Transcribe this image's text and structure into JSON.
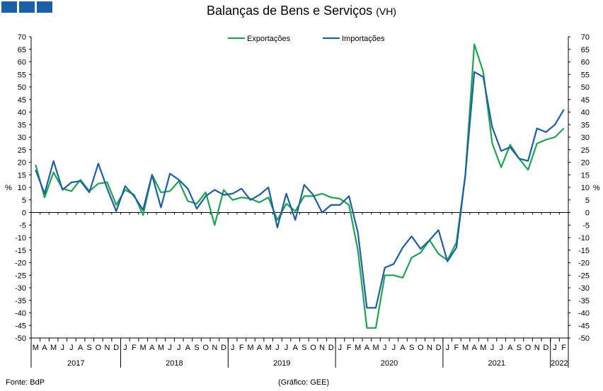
{
  "header": {
    "title": "Balanças de Bens e Serviços",
    "subtitle": "(VH)"
  },
  "footer": {
    "source": "Fonte: BdP",
    "credit": "(Gráfico: GEE)"
  },
  "colors": {
    "exportacoes": "#1aa64a",
    "importacoes": "#1b5fa8",
    "logo": "#1b5fa8"
  },
  "chart_data": {
    "type": "line",
    "title": "Balanças de Bens e Serviços",
    "ylabel": "%",
    "ylabel_right": "%",
    "ylim": [
      -50,
      70
    ],
    "ytick_step": 5,
    "grid": false,
    "legend_position": "top-center",
    "months": [
      "M",
      "A",
      "M",
      "J",
      "J",
      "A",
      "S",
      "O",
      "N",
      "D",
      "J",
      "F",
      "M",
      "A",
      "M",
      "J",
      "J",
      "A",
      "S",
      "O",
      "N",
      "D",
      "J",
      "F",
      "M",
      "A",
      "M",
      "J",
      "J",
      "A",
      "S",
      "O",
      "N",
      "D",
      "J",
      "F",
      "M",
      "A",
      "M",
      "J",
      "J",
      "A",
      "S",
      "O",
      "N",
      "D",
      "J",
      "F",
      "M",
      "A",
      "M",
      "J",
      "J",
      "A",
      "S",
      "O",
      "N",
      "D",
      "J",
      "F"
    ],
    "years": [
      {
        "label": "2017",
        "months": 10
      },
      {
        "label": "2018",
        "months": 12
      },
      {
        "label": "2019",
        "months": 12
      },
      {
        "label": "2020",
        "months": 12
      },
      {
        "label": "2021",
        "months": 12
      },
      {
        "label": "2022",
        "months": 2
      }
    ],
    "x": [
      "2017-03",
      "2017-04",
      "2017-05",
      "2017-06",
      "2017-07",
      "2017-08",
      "2017-09",
      "2017-10",
      "2017-11",
      "2017-12",
      "2018-01",
      "2018-02",
      "2018-03",
      "2018-04",
      "2018-05",
      "2018-06",
      "2018-07",
      "2018-08",
      "2018-09",
      "2018-10",
      "2018-11",
      "2018-12",
      "2019-01",
      "2019-02",
      "2019-03",
      "2019-04",
      "2019-05",
      "2019-06",
      "2019-07",
      "2019-08",
      "2019-09",
      "2019-10",
      "2019-11",
      "2019-12",
      "2020-01",
      "2020-02",
      "2020-03",
      "2020-04",
      "2020-05",
      "2020-06",
      "2020-07",
      "2020-08",
      "2020-09",
      "2020-10",
      "2020-11",
      "2020-12",
      "2021-01",
      "2021-02",
      "2021-03",
      "2021-04",
      "2021-05",
      "2021-06",
      "2021-07",
      "2021-08",
      "2021-09",
      "2021-10",
      "2021-11",
      "2021-12",
      "2022-01",
      "2022-02"
    ],
    "series": [
      {
        "name": "Exportações",
        "color": "#1aa64a",
        "values": [
          19,
          6,
          16,
          9.5,
          8.5,
          13,
          8.5,
          11.5,
          12,
          3,
          9,
          7,
          -1,
          15,
          8,
          8.5,
          12.5,
          4.5,
          3.5,
          8,
          -5,
          9,
          5,
          6,
          5.5,
          4,
          6,
          -3,
          3.5,
          0.5,
          6.5,
          6.5,
          7.5,
          6,
          5.5,
          3,
          -15,
          -46,
          -46,
          -25,
          -25,
          -26,
          -18,
          -16,
          -11,
          -16.5,
          -19,
          -12,
          15,
          67,
          56,
          27.5,
          18,
          27,
          21.5,
          17,
          27.5,
          29,
          30,
          33.5
        ]
      },
      {
        "name": "Importações",
        "color": "#1b5fa8",
        "values": [
          17,
          7.5,
          20.5,
          9,
          12,
          12.5,
          8,
          19.5,
          9.5,
          0.5,
          10.5,
          6.5,
          1,
          15,
          2,
          15.5,
          13,
          9.5,
          1.5,
          6.5,
          9,
          7,
          7.5,
          9.5,
          5,
          7,
          10,
          -6,
          7.5,
          -3,
          11,
          7,
          0,
          3,
          3,
          6.5,
          -8,
          -38,
          -38,
          -22,
          -20.5,
          -14,
          -9.5,
          -14.5,
          -11,
          -7,
          -19.5,
          -14,
          15,
          56,
          54,
          34,
          24.5,
          26,
          21.5,
          20.5,
          33.5,
          32,
          35,
          41
        ]
      }
    ]
  }
}
